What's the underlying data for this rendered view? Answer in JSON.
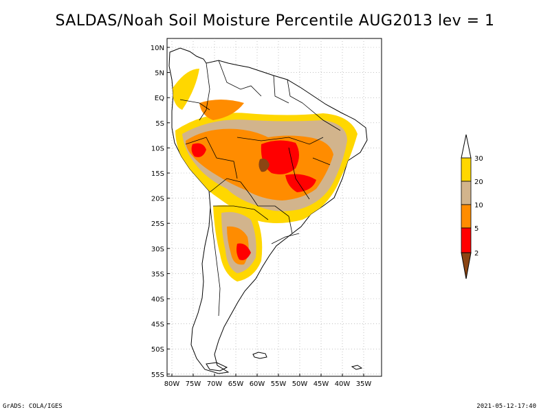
{
  "title": "SALDAS/Noah Soil Moisture Percentile AUG2013 lev = 1",
  "footer": {
    "left": "GrADS: COLA/IGES",
    "right": "2021-05-12-17:40"
  },
  "map": {
    "region": "South America",
    "lat_ticks": [
      "10N",
      "5N",
      "EQ",
      "5S",
      "10S",
      "15S",
      "20S",
      "25S",
      "30S",
      "35S",
      "40S",
      "45S",
      "50S",
      "55S"
    ],
    "lon_ticks": [
      "80W",
      "75W",
      "70W",
      "65W",
      "60W",
      "55W",
      "50W",
      "45W",
      "40W",
      "35W"
    ],
    "grid": true,
    "grid_style": "dotted",
    "land_fill": "#ffffff",
    "border_color": "#000000"
  },
  "legend": {
    "placement": "right",
    "levels": [
      "2",
      "5",
      "10",
      "20",
      "30"
    ],
    "colors": {
      "below_2": "#8b4513",
      "2_to_5": "#ff0000",
      "5_to_10": "#ff8c00",
      "10_to_20": "#d2b48c",
      "20_to_30": "#ffd700",
      "above_30": "#ffffff"
    }
  },
  "chart_data": {
    "type": "heatmap",
    "title": "SALDAS/Noah Soil Moisture Percentile AUG2013 lev = 1",
    "variable": "Soil Moisture Percentile",
    "period": "AUG2013",
    "level": "lev = 1",
    "color_levels": [
      2,
      5,
      10,
      20,
      30
    ],
    "x_range": [
      "80W",
      "32W"
    ],
    "y_range": [
      "11N",
      "56S"
    ],
    "grid": true,
    "legend_placement": "right"
  }
}
